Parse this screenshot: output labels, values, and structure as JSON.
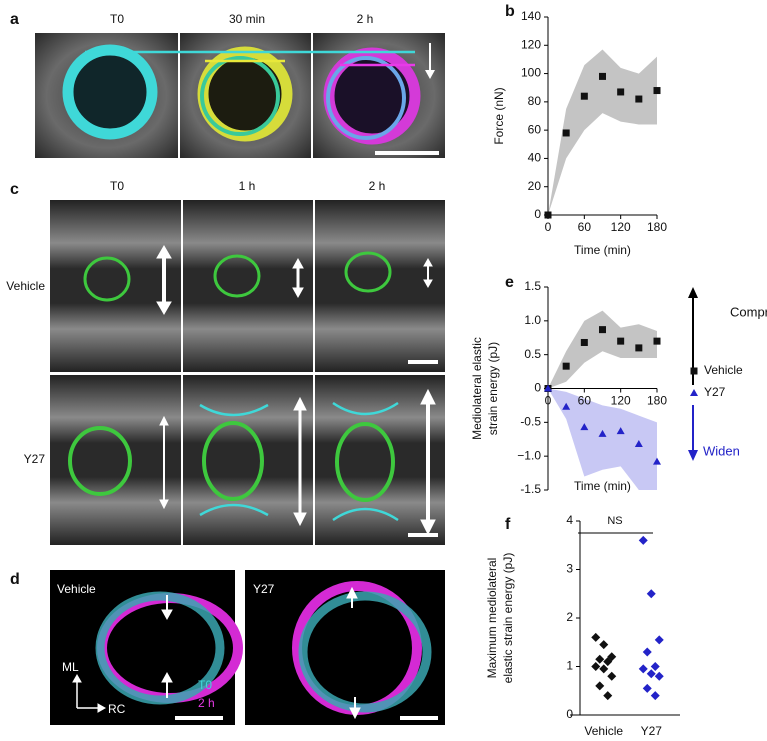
{
  "panels": {
    "a": {
      "label": "a",
      "captions": [
        "T0",
        "30 min",
        "2 h"
      ]
    },
    "c": {
      "label": "c",
      "captions": [
        "T0",
        "1 h",
        "2 h"
      ],
      "rows": [
        "Vehicle",
        "Y27"
      ]
    },
    "d": {
      "label": "d",
      "left": "Vehicle",
      "right": "Y27",
      "axes": [
        "ML",
        "RC"
      ],
      "legend": [
        "T0",
        "2 h"
      ]
    }
  },
  "chart_data": [
    {
      "type": "line",
      "panel": "b",
      "xlabel": "Time (min)",
      "ylabel": [
        "Force (nN)"
      ],
      "x": [
        0,
        30,
        60,
        90,
        120,
        150,
        180
      ],
      "xlim": [
        0,
        180
      ],
      "xticks": [
        0,
        60,
        120,
        180
      ],
      "ylim": [
        0,
        140
      ],
      "yticks": [
        0,
        20,
        40,
        60,
        80,
        100,
        120,
        140
      ],
      "series": [
        {
          "color": "#111111",
          "marker": "square",
          "band_color": "#c4c4c4",
          "values": [
            0,
            58,
            84,
            98,
            87,
            82,
            88
          ],
          "band_lower": [
            0,
            40,
            60,
            72,
            66,
            64,
            64
          ],
          "band_upper": [
            0,
            75,
            106,
            117,
            104,
            100,
            112
          ]
        }
      ]
    },
    {
      "type": "line",
      "panel": "e",
      "xlabel": "Time (min)",
      "ylabel": [
        "Mediolateral elastic",
        "strain energy (pJ)"
      ],
      "x": [
        0,
        30,
        60,
        90,
        120,
        150,
        180
      ],
      "xlim": [
        0,
        180
      ],
      "xticks": [
        0,
        60,
        120,
        180
      ],
      "ylim": [
        -1.5,
        1.5
      ],
      "yticks": [
        -1.5,
        {
          "value": -1,
          "label": "−1.0"
        },
        -0.5,
        0,
        0.5,
        {
          "value": 1,
          "label": "1.0"
        },
        1.5
      ],
      "annotations": [
        "Compress",
        "Widen"
      ],
      "series": [
        {
          "name": "Vehicle",
          "color": "#111111",
          "marker": "square",
          "band_color": "#c4c4c4",
          "values": [
            0,
            0.33,
            0.68,
            0.87,
            0.7,
            0.6,
            0.7
          ],
          "band_lower": [
            0,
            0.1,
            0.38,
            0.55,
            0.45,
            0.45,
            0.45
          ],
          "band_upper": [
            0,
            0.55,
            1.0,
            1.15,
            0.9,
            0.95,
            0.85
          ]
        },
        {
          "name": "Y27",
          "color": "#2323c8",
          "marker": "triangle",
          "band_color": "#c8c8f4",
          "values": [
            0,
            -0.27,
            -0.57,
            -0.67,
            -0.63,
            -0.82,
            -1.08
          ],
          "band_lower": [
            0,
            -0.45,
            -1.3,
            -1.2,
            -1.15,
            -1.5,
            -1.5
          ],
          "band_upper": [
            0,
            -0.05,
            -0.15,
            -0.25,
            -0.3,
            -0.4,
            -0.5
          ]
        }
      ]
    },
    {
      "type": "strip",
      "panel": "f",
      "ylabel": [
        "Maximum mediolateral",
        "elastic strain energy (pJ)"
      ],
      "categories": [
        "Vehicle",
        "Y27"
      ],
      "ylim": [
        0,
        4
      ],
      "yticks": [
        0,
        1,
        2,
        3,
        4
      ],
      "annotations": [
        "NS"
      ],
      "series": [
        {
          "color": "#111111",
          "marker": "diamond",
          "values": [
            1.6,
            1.45,
            1.2,
            1.15,
            1.1,
            1.0,
            0.95,
            0.8,
            0.6,
            0.4
          ]
        },
        {
          "color": "#2323c8",
          "marker": "diamond",
          "values": [
            3.6,
            2.5,
            1.55,
            1.3,
            1.0,
            0.95,
            0.85,
            0.8,
            0.55,
            0.4
          ]
        }
      ]
    }
  ]
}
